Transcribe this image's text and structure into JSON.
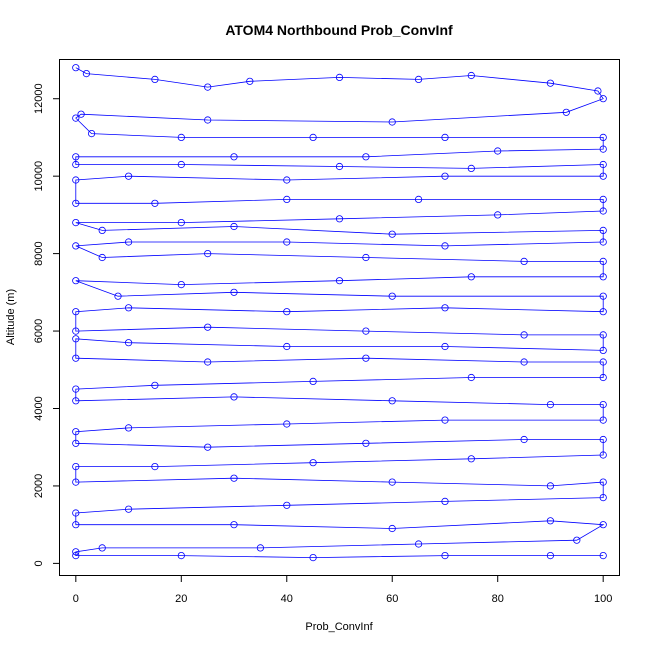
{
  "chart_data": {
    "type": "line",
    "title": "ATOM4 Northbound Prob_ConvInf",
    "xlabel": "Prob_ConvInf",
    "ylabel": "Altitude (m)",
    "xlim": [
      -3,
      103
    ],
    "ylim": [
      -300,
      13000
    ],
    "xticks": [
      0,
      20,
      40,
      60,
      80,
      100
    ],
    "yticks": [
      0,
      2000,
      4000,
      6000,
      8000,
      10000,
      12000
    ],
    "series_color": "#0000ff",
    "marker": "open-circle",
    "legend": "none",
    "grid": false,
    "series": [
      {
        "values": [
          [
            0,
            12800
          ],
          [
            2,
            12650
          ],
          [
            15,
            12500
          ],
          [
            25,
            12300
          ],
          [
            33,
            12450
          ],
          [
            50,
            12550
          ],
          [
            65,
            12500
          ],
          [
            75,
            12600
          ],
          [
            90,
            12400
          ],
          [
            99,
            12200
          ],
          [
            100,
            12000
          ],
          [
            93,
            11650
          ],
          [
            60,
            11400
          ],
          [
            25,
            11450
          ],
          [
            1,
            11600
          ],
          [
            0,
            11500
          ],
          [
            3,
            11100
          ],
          [
            20,
            11000
          ],
          [
            45,
            11000
          ],
          [
            70,
            11000
          ],
          [
            100,
            11000
          ],
          [
            100,
            10700
          ],
          [
            80,
            10650
          ],
          [
            55,
            10500
          ],
          [
            30,
            10500
          ],
          [
            0,
            10500
          ],
          [
            0,
            10300
          ],
          [
            20,
            10300
          ],
          [
            50,
            10250
          ],
          [
            75,
            10200
          ],
          [
            100,
            10300
          ],
          [
            100,
            10000
          ],
          [
            70,
            10000
          ],
          [
            40,
            9900
          ],
          [
            10,
            10000
          ],
          [
            0,
            9900
          ],
          [
            0,
            9300
          ],
          [
            15,
            9300
          ],
          [
            40,
            9400
          ],
          [
            65,
            9400
          ],
          [
            100,
            9400
          ],
          [
            100,
            9100
          ],
          [
            80,
            9000
          ],
          [
            50,
            8900
          ],
          [
            20,
            8800
          ],
          [
            0,
            8800
          ],
          [
            5,
            8600
          ],
          [
            30,
            8700
          ],
          [
            60,
            8500
          ],
          [
            100,
            8600
          ],
          [
            100,
            8300
          ],
          [
            70,
            8200
          ],
          [
            40,
            8300
          ],
          [
            10,
            8300
          ],
          [
            0,
            8200
          ],
          [
            5,
            7900
          ],
          [
            25,
            8000
          ],
          [
            55,
            7900
          ],
          [
            85,
            7800
          ],
          [
            100,
            7800
          ],
          [
            100,
            7400
          ],
          [
            75,
            7400
          ],
          [
            50,
            7300
          ],
          [
            20,
            7200
          ],
          [
            0,
            7300
          ],
          [
            8,
            6900
          ],
          [
            30,
            7000
          ],
          [
            60,
            6900
          ],
          [
            100,
            6900
          ],
          [
            100,
            6500
          ],
          [
            70,
            6600
          ],
          [
            40,
            6500
          ],
          [
            10,
            6600
          ],
          [
            0,
            6500
          ],
          [
            0,
            6000
          ],
          [
            25,
            6100
          ],
          [
            55,
            6000
          ],
          [
            85,
            5900
          ],
          [
            100,
            5900
          ],
          [
            100,
            5500
          ],
          [
            70,
            5600
          ],
          [
            40,
            5600
          ],
          [
            10,
            5700
          ],
          [
            0,
            5800
          ],
          [
            0,
            5300
          ],
          [
            25,
            5200
          ],
          [
            55,
            5300
          ],
          [
            85,
            5200
          ],
          [
            100,
            5200
          ],
          [
            100,
            4800
          ],
          [
            75,
            4800
          ],
          [
            45,
            4700
          ],
          [
            15,
            4600
          ],
          [
            0,
            4500
          ],
          [
            0,
            4200
          ],
          [
            30,
            4300
          ],
          [
            60,
            4200
          ],
          [
            90,
            4100
          ],
          [
            100,
            4100
          ],
          [
            100,
            3700
          ],
          [
            70,
            3700
          ],
          [
            40,
            3600
          ],
          [
            10,
            3500
          ],
          [
            0,
            3400
          ],
          [
            0,
            3100
          ],
          [
            25,
            3000
          ],
          [
            55,
            3100
          ],
          [
            85,
            3200
          ],
          [
            100,
            3200
          ],
          [
            100,
            2800
          ],
          [
            75,
            2700
          ],
          [
            45,
            2600
          ],
          [
            15,
            2500
          ],
          [
            0,
            2500
          ],
          [
            0,
            2100
          ],
          [
            30,
            2200
          ],
          [
            60,
            2100
          ],
          [
            90,
            2000
          ],
          [
            100,
            2100
          ],
          [
            100,
            1700
          ],
          [
            70,
            1600
          ],
          [
            40,
            1500
          ],
          [
            10,
            1400
          ],
          [
            0,
            1300
          ],
          [
            0,
            1000
          ],
          [
            30,
            1000
          ],
          [
            60,
            900
          ],
          [
            90,
            1100
          ],
          [
            100,
            1000
          ],
          [
            95,
            600
          ],
          [
            65,
            500
          ],
          [
            35,
            400
          ],
          [
            5,
            400
          ],
          [
            0,
            300
          ],
          [
            0,
            200
          ],
          [
            20,
            200
          ],
          [
            45,
            150
          ],
          [
            70,
            200
          ],
          [
            90,
            200
          ],
          [
            100,
            200
          ]
        ]
      }
    ]
  }
}
